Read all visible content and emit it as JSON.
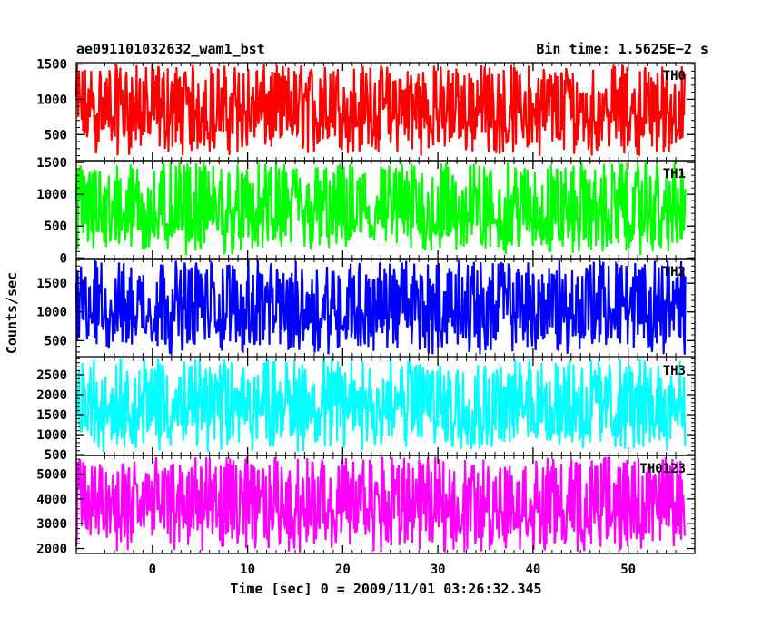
{
  "header": {
    "left_title": "ae091101032632_wam1_bst",
    "right_title": "Bin time: 1.5625E−2 s"
  },
  "xlabel": "Time [sec] 0 = 2009/11/01 03:26:32.345",
  "ylabel": "Counts/sec",
  "chart_data": [
    {
      "type": "line",
      "name": "TH0",
      "color": "#ff0000",
      "x": [
        -8,
        56
      ],
      "ylim": [
        130,
        1520
      ],
      "yticks": [
        500,
        1000,
        1500
      ],
      "y_range_observed": [
        190,
        1500
      ],
      "y_typical_center": 800
    },
    {
      "type": "line",
      "name": "TH1",
      "color": "#00ff00",
      "x": [
        -8,
        56
      ],
      "ylim": [
        -10,
        1530
      ],
      "yticks": [
        0,
        500,
        1000,
        1500
      ],
      "y_range_observed": [
        30,
        1500
      ],
      "y_typical_center": 640
    },
    {
      "type": "line",
      "name": "TH2",
      "color": "#0000ff",
      "x": [
        -8,
        56
      ],
      "ylim": [
        220,
        1930
      ],
      "yticks": [
        500,
        1000,
        1500
      ],
      "y_range_observed": [
        250,
        1900
      ],
      "y_typical_center": 1000
    },
    {
      "type": "line",
      "name": "TH3",
      "color": "#00ffff",
      "x": [
        -8,
        56
      ],
      "ylim": [
        480,
        2930
      ],
      "yticks": [
        500,
        1000,
        1500,
        2000,
        2500
      ],
      "y_range_observed": [
        540,
        2900
      ],
      "y_typical_center": 1700
    },
    {
      "type": "line",
      "name": "TH0123",
      "color": "#ff00ff",
      "x": [
        -8,
        56
      ],
      "ylim": [
        1800,
        5750
      ],
      "yticks": [
        2000,
        3000,
        4000,
        5000
      ],
      "y_range_observed": [
        1800,
        5700
      ],
      "y_typical_center": 3600
    }
  ],
  "xaxis": {
    "range": [
      -8,
      57
    ],
    "ticks": [
      0,
      10,
      20,
      30,
      40,
      50
    ]
  }
}
